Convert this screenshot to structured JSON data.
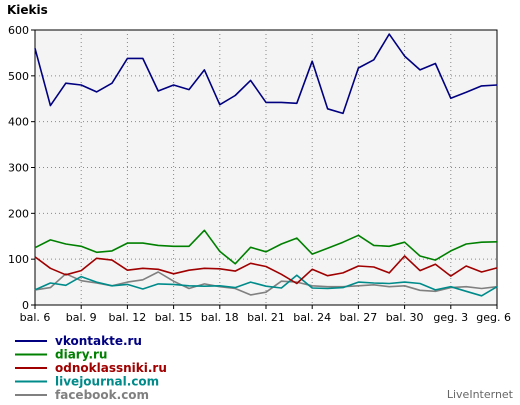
{
  "chart_data": {
    "type": "line",
    "title": "Kiekis",
    "ylim": [
      0,
      600
    ],
    "yticks": [
      0,
      100,
      200,
      300,
      400,
      500,
      600
    ],
    "x": [
      "bal. 6",
      "bal. 7",
      "bal. 8",
      "bal. 9",
      "bal. 10",
      "bal. 11",
      "bal. 12",
      "bal. 13",
      "bal. 14",
      "bal. 15",
      "bal. 16",
      "bal. 17",
      "bal. 18",
      "bal. 19",
      "bal. 20",
      "bal. 21",
      "bal. 22",
      "bal. 23",
      "bal. 24",
      "bal. 25",
      "bal. 26",
      "bal. 27",
      "bal. 28",
      "bal. 29",
      "bal. 30",
      "geg. 1",
      "geg. 2",
      "geg. 3",
      "geg. 4",
      "geg. 5",
      "geg. 6"
    ],
    "xtick_labels": [
      "bal. 6",
      "bal. 9",
      "bal. 12",
      "bal. 15",
      "bal. 18",
      "bal. 21",
      "bal. 24",
      "bal. 27",
      "bal. 30",
      "geg. 3",
      "geg. 6"
    ],
    "grid": true,
    "legend_position": "bottom-left",
    "series": [
      {
        "name": "vkontakte.ru",
        "color": "#000080",
        "values": [
          560,
          435,
          484,
          480,
          465,
          484,
          538,
          538,
          467,
          480,
          470,
          513,
          437,
          457,
          490,
          442,
          442,
          440,
          532,
          428,
          418,
          517,
          535,
          591,
          543,
          513,
          527,
          451,
          464,
          478,
          480
        ]
      },
      {
        "name": "diary.ru",
        "color": "#008000",
        "values": [
          125,
          142,
          133,
          128,
          115,
          118,
          135,
          135,
          130,
          128,
          128,
          163,
          117,
          90,
          126,
          116,
          133,
          146,
          111,
          124,
          137,
          152,
          130,
          128,
          137,
          107,
          98,
          118,
          133,
          137,
          138
        ]
      },
      {
        "name": "odnoklassniki.ru",
        "color": "#a00000",
        "values": [
          105,
          80,
          66,
          75,
          102,
          98,
          76,
          80,
          78,
          68,
          76,
          80,
          79,
          74,
          91,
          84,
          67,
          47,
          78,
          64,
          70,
          85,
          83,
          70,
          107,
          75,
          89,
          63,
          85,
          72,
          81
        ]
      },
      {
        "name": "livejournal.com",
        "color": "#008b8b",
        "values": [
          33,
          48,
          43,
          62,
          50,
          42,
          45,
          35,
          46,
          45,
          42,
          41,
          42,
          38,
          50,
          41,
          37,
          65,
          37,
          36,
          38,
          50,
          48,
          47,
          50,
          47,
          33,
          40,
          30,
          20,
          40
        ]
      },
      {
        "name": "facebook.com",
        "color": "#808080",
        "values": [
          33,
          38,
          68,
          53,
          48,
          42,
          50,
          55,
          72,
          52,
          36,
          46,
          40,
          36,
          22,
          28,
          52,
          50,
          42,
          40,
          40,
          42,
          44,
          40,
          42,
          32,
          30,
          38,
          40,
          36,
          40
        ]
      }
    ]
  },
  "watermark": "LiveInternet"
}
